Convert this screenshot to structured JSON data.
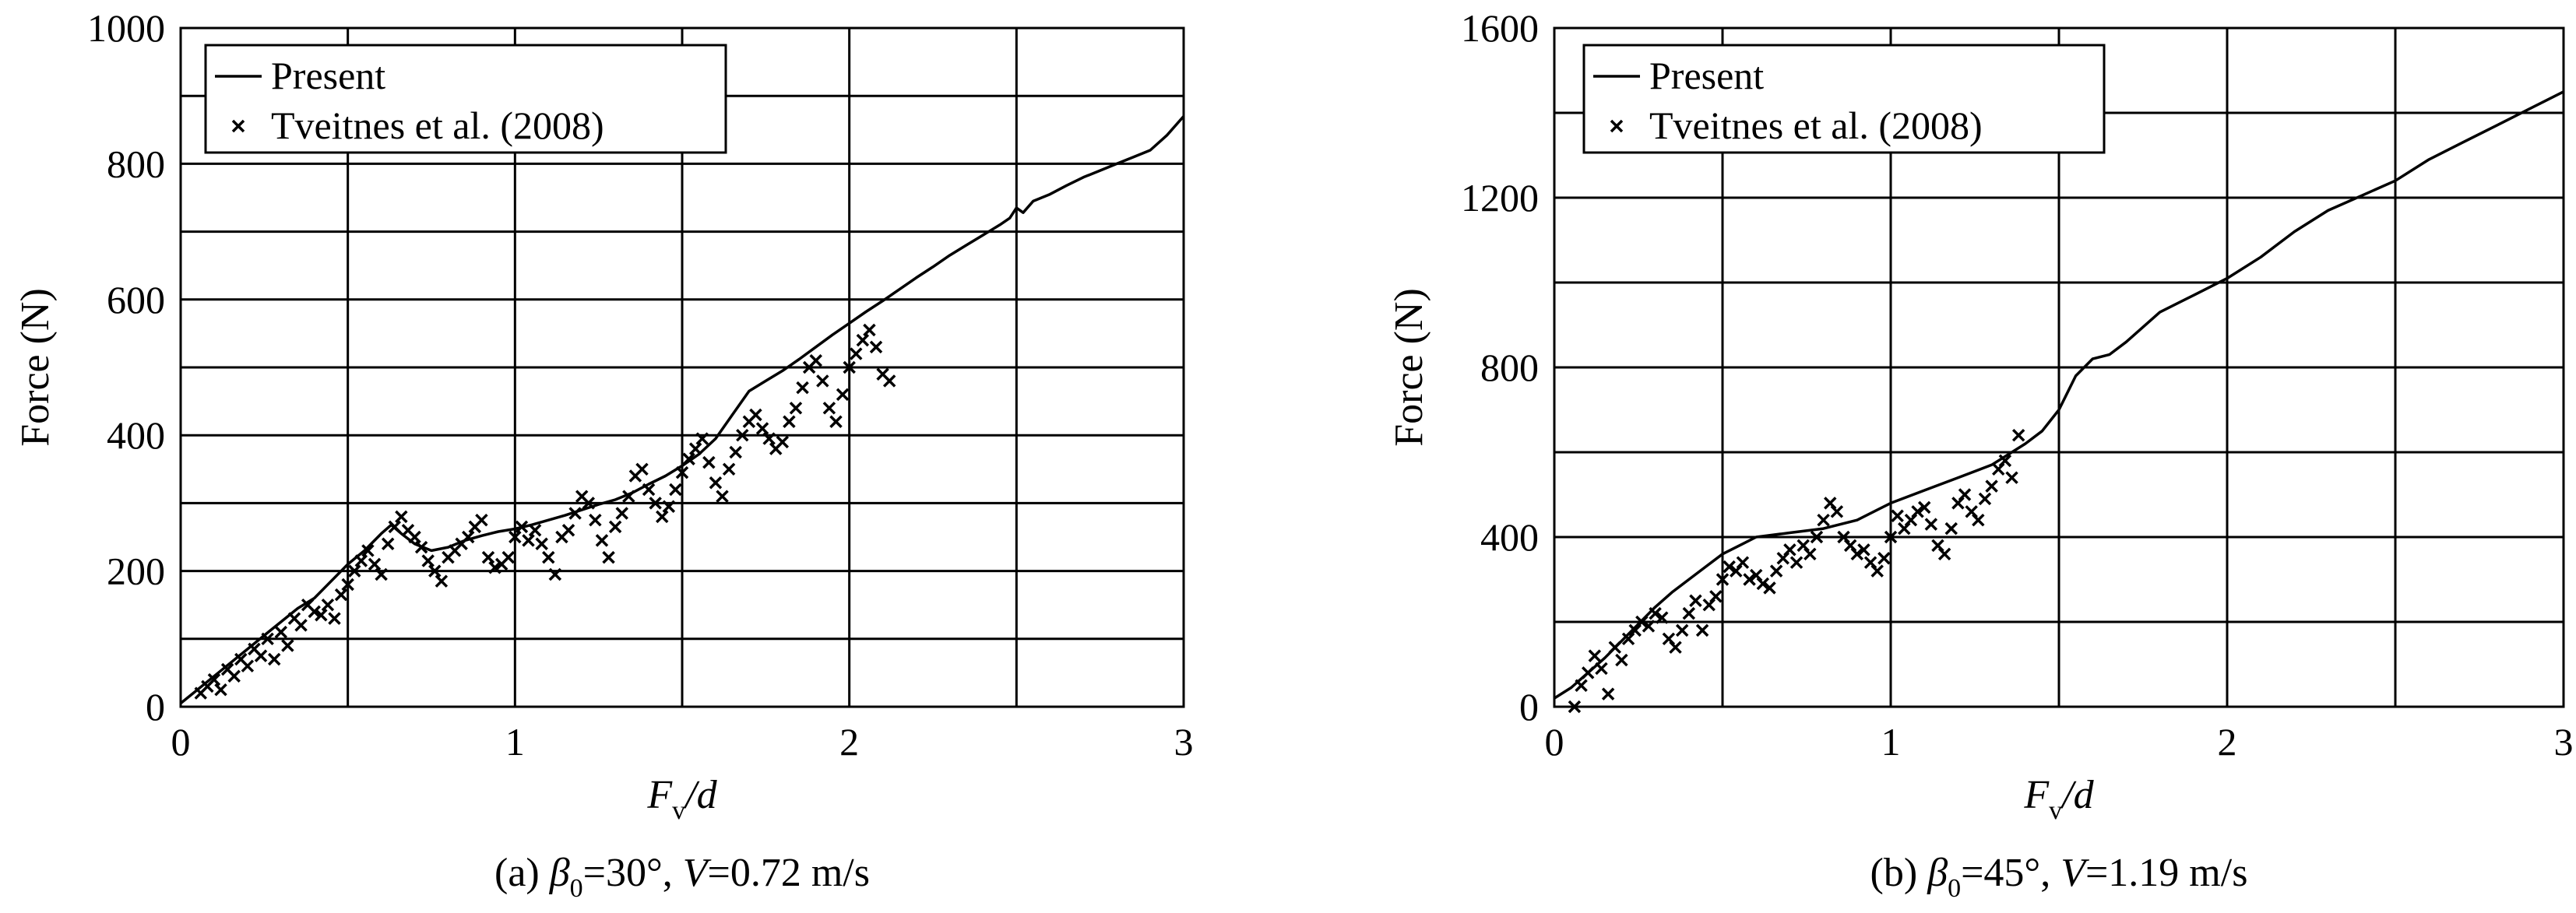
{
  "chart_data": [
    {
      "type": "line",
      "caption": {
        "prefix": "(a) ",
        "beta": "β",
        "beta_sub": "0",
        "beta_value": "=30°, ",
        "v": "V",
        "v_value": "=0.72 m/s"
      },
      "xlabel": {
        "main": "F",
        "sub": "v",
        "rest": "/d"
      },
      "ylabel": "Force (N)",
      "xlim": [
        0,
        3
      ],
      "ylim": [
        0,
        1000
      ],
      "xticks": [
        0,
        1,
        2,
        3
      ],
      "xtick_labels": [
        "0",
        "1",
        "2",
        "3"
      ],
      "yticks": [
        0,
        200,
        400,
        600,
        800,
        1000
      ],
      "ytick_labels": [
        "0",
        "200",
        "400",
        "600",
        "800",
        "1000"
      ],
      "xgrid": [
        0.5,
        1,
        1.5,
        2,
        2.5,
        3
      ],
      "ygrid": [
        100,
        200,
        300,
        400,
        500,
        600,
        700,
        800,
        900,
        1000
      ],
      "legend": {
        "position": "top-left",
        "entries": [
          "Present",
          "Tveitnes et al. (2008)"
        ]
      },
      "series": [
        {
          "name": "Present",
          "style": "line",
          "x": [
            0.0,
            0.05,
            0.1,
            0.15,
            0.2,
            0.25,
            0.3,
            0.35,
            0.4,
            0.45,
            0.5,
            0.55,
            0.6,
            0.63,
            0.66,
            0.7,
            0.75,
            0.8,
            0.85,
            0.9,
            0.95,
            1.0,
            1.05,
            1.1,
            1.15,
            1.2,
            1.25,
            1.3,
            1.35,
            1.4,
            1.45,
            1.5,
            1.55,
            1.6,
            1.65,
            1.7,
            1.75,
            1.8,
            1.85,
            1.9,
            1.95,
            2.0,
            2.05,
            2.1,
            2.15,
            2.2,
            2.25,
            2.3,
            2.35,
            2.4,
            2.45,
            2.48,
            2.5,
            2.52,
            2.55,
            2.6,
            2.65,
            2.7,
            2.75,
            2.8,
            2.85,
            2.9,
            2.95,
            3.0
          ],
          "y": [
            5,
            25,
            45,
            65,
            85,
            105,
            125,
            145,
            160,
            185,
            210,
            230,
            255,
            268,
            255,
            240,
            230,
            235,
            245,
            252,
            258,
            262,
            268,
            275,
            282,
            290,
            298,
            305,
            315,
            328,
            340,
            355,
            372,
            395,
            430,
            465,
            480,
            495,
            512,
            530,
            548,
            565,
            582,
            598,
            615,
            632,
            648,
            665,
            680,
            695,
            710,
            720,
            735,
            728,
            745,
            755,
            768,
            780,
            790,
            800,
            810,
            820,
            842,
            870
          ]
        },
        {
          "name": "Tveitnes et al. (2008)",
          "style": "scatter",
          "x": [
            0.06,
            0.08,
            0.1,
            0.12,
            0.14,
            0.16,
            0.18,
            0.2,
            0.22,
            0.24,
            0.26,
            0.28,
            0.3,
            0.32,
            0.34,
            0.36,
            0.38,
            0.4,
            0.42,
            0.44,
            0.46,
            0.48,
            0.5,
            0.52,
            0.54,
            0.56,
            0.58,
            0.6,
            0.62,
            0.64,
            0.66,
            0.68,
            0.7,
            0.72,
            0.74,
            0.76,
            0.78,
            0.8,
            0.82,
            0.84,
            0.86,
            0.88,
            0.9,
            0.92,
            0.94,
            0.96,
            0.98,
            1.0,
            1.02,
            1.04,
            1.06,
            1.08,
            1.1,
            1.12,
            1.14,
            1.16,
            1.18,
            1.2,
            1.22,
            1.24,
            1.26,
            1.28,
            1.3,
            1.32,
            1.34,
            1.36,
            1.38,
            1.4,
            1.42,
            1.44,
            1.46,
            1.48,
            1.5,
            1.52,
            1.54,
            1.56,
            1.58,
            1.6,
            1.62,
            1.64,
            1.66,
            1.68,
            1.7,
            1.72,
            1.74,
            1.76,
            1.78,
            1.8,
            1.82,
            1.84,
            1.86,
            1.88,
            1.9,
            1.92,
            1.94,
            1.96,
            1.98,
            2.0,
            2.02,
            2.04,
            2.06,
            2.08,
            2.1,
            2.12
          ],
          "y": [
            20,
            30,
            40,
            25,
            55,
            45,
            70,
            60,
            85,
            75,
            100,
            70,
            110,
            90,
            130,
            120,
            150,
            140,
            135,
            150,
            130,
            165,
            180,
            200,
            215,
            230,
            210,
            195,
            240,
            265,
            280,
            260,
            250,
            235,
            215,
            200,
            185,
            220,
            230,
            240,
            250,
            265,
            275,
            220,
            205,
            210,
            220,
            250,
            265,
            245,
            260,
            240,
            220,
            195,
            250,
            260,
            285,
            310,
            300,
            275,
            245,
            220,
            265,
            285,
            310,
            340,
            350,
            320,
            300,
            280,
            295,
            320,
            345,
            365,
            380,
            395,
            360,
            330,
            310,
            350,
            375,
            400,
            420,
            430,
            410,
            395,
            380,
            390,
            420,
            440,
            470,
            500,
            510,
            480,
            440,
            420,
            460,
            500,
            520,
            540,
            555,
            530,
            490,
            480
          ]
        }
      ]
    },
    {
      "type": "line",
      "caption": {
        "prefix": "(b) ",
        "beta": "β",
        "beta_sub": "0",
        "beta_value": "=45°, ",
        "v": "V",
        "v_value": "=1.19 m/s"
      },
      "xlabel": {
        "main": "F",
        "sub": "v",
        "rest": "/d"
      },
      "ylabel": "Force (N)",
      "xlim": [
        0,
        3
      ],
      "ylim": [
        0,
        1600
      ],
      "xticks": [
        0,
        1,
        2,
        3
      ],
      "xtick_labels": [
        "0",
        "1",
        "2",
        "3"
      ],
      "yticks": [
        0,
        400,
        800,
        1200,
        1600
      ],
      "ytick_labels": [
        "0",
        "400",
        "800",
        "1200",
        "1600"
      ],
      "xgrid": [
        0.5,
        1,
        1.5,
        2,
        2.5,
        3
      ],
      "ygrid": [
        200,
        400,
        600,
        800,
        1000,
        1200,
        1400,
        1600
      ],
      "legend": {
        "position": "top-left",
        "entries": [
          "Present",
          "Tveitnes et al. (2008)"
        ]
      },
      "series": [
        {
          "name": "Present",
          "style": "line",
          "x": [
            0.0,
            0.05,
            0.1,
            0.15,
            0.2,
            0.25,
            0.3,
            0.35,
            0.4,
            0.45,
            0.5,
            0.55,
            0.6,
            0.7,
            0.8,
            0.9,
            1.0,
            1.1,
            1.2,
            1.3,
            1.4,
            1.45,
            1.5,
            1.55,
            1.6,
            1.65,
            1.7,
            1.8,
            1.9,
            2.0,
            2.1,
            2.2,
            2.3,
            2.4,
            2.5,
            2.6,
            2.7,
            2.8,
            2.9,
            3.0
          ],
          "y": [
            20,
            45,
            80,
            115,
            155,
            195,
            235,
            270,
            300,
            330,
            360,
            380,
            400,
            410,
            420,
            440,
            480,
            510,
            540,
            570,
            620,
            650,
            700,
            780,
            820,
            830,
            860,
            930,
            970,
            1010,
            1060,
            1120,
            1170,
            1205,
            1240,
            1290,
            1330,
            1370,
            1410,
            1450
          ]
        },
        {
          "name": "Tveitnes et al. (2008)",
          "style": "scatter",
          "x": [
            0.06,
            0.08,
            0.1,
            0.12,
            0.14,
            0.16,
            0.18,
            0.2,
            0.22,
            0.24,
            0.26,
            0.28,
            0.3,
            0.32,
            0.34,
            0.36,
            0.38,
            0.4,
            0.42,
            0.44,
            0.46,
            0.48,
            0.5,
            0.52,
            0.54,
            0.56,
            0.58,
            0.6,
            0.62,
            0.64,
            0.66,
            0.68,
            0.7,
            0.72,
            0.74,
            0.76,
            0.78,
            0.8,
            0.82,
            0.84,
            0.86,
            0.88,
            0.9,
            0.92,
            0.94,
            0.96,
            0.98,
            1.0,
            1.02,
            1.04,
            1.06,
            1.08,
            1.1,
            1.12,
            1.14,
            1.16,
            1.18,
            1.2,
            1.22,
            1.24,
            1.26,
            1.28,
            1.3,
            1.32,
            1.34,
            1.36,
            1.38
          ],
          "y": [
            0,
            50,
            80,
            120,
            90,
            30,
            140,
            110,
            160,
            180,
            200,
            190,
            220,
            210,
            160,
            140,
            180,
            220,
            250,
            180,
            240,
            260,
            300,
            330,
            320,
            340,
            300,
            310,
            290,
            280,
            320,
            350,
            370,
            340,
            380,
            360,
            400,
            440,
            480,
            460,
            400,
            380,
            360,
            370,
            340,
            320,
            350,
            400,
            450,
            420,
            440,
            460,
            470,
            430,
            380,
            360,
            420,
            480,
            500,
            460,
            440,
            490,
            520,
            560,
            580,
            540,
            640
          ]
        }
      ]
    }
  ]
}
